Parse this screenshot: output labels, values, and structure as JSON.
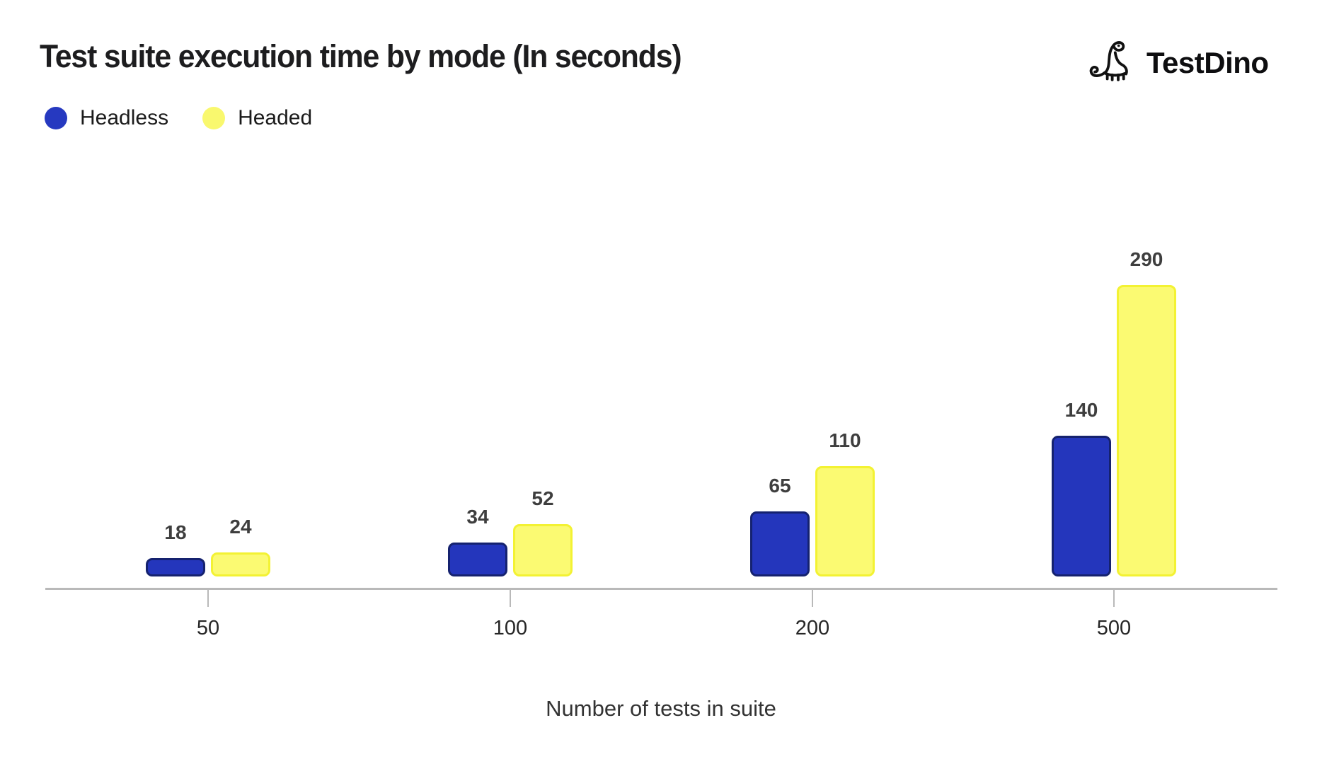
{
  "header": {
    "title": "Test suite execution time by mode (In seconds)",
    "brand": "TestDino"
  },
  "chart_data": {
    "type": "bar",
    "title": "Test suite execution time by mode (In seconds)",
    "categories": [
      "50",
      "100",
      "200",
      "500"
    ],
    "series": [
      {
        "name": "Headless",
        "values": [
          18,
          34,
          65,
          140
        ],
        "fill": "#2436BC",
        "border": "#15226F"
      },
      {
        "name": "Headed",
        "values": [
          24,
          52,
          110,
          290
        ],
        "fill": "#FBFA72",
        "border": "#F3F233"
      }
    ],
    "xlabel": "Number of tests in suite",
    "ylabel": "",
    "ylim": [
      0,
      320
    ],
    "grid": false,
    "y_axis_visible": false,
    "value_labels": true,
    "legend_position": "top-left",
    "axis_color": "#b9b9b9"
  }
}
